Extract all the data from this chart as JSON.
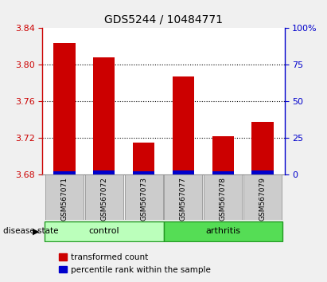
{
  "title": "GDS5244 / 10484771",
  "samples": [
    "GSM567071",
    "GSM567072",
    "GSM567073",
    "GSM567077",
    "GSM567078",
    "GSM567079"
  ],
  "transformed_counts": [
    3.824,
    3.808,
    3.715,
    3.787,
    3.722,
    3.738
  ],
  "percentile_ranks": [
    2.5,
    3.0,
    2.5,
    3.0,
    2.5,
    2.8
  ],
  "ylim_left": [
    3.68,
    3.84
  ],
  "ylim_right": [
    0,
    100
  ],
  "yticks_left": [
    3.68,
    3.72,
    3.76,
    3.8,
    3.84
  ],
  "yticks_right": [
    0,
    25,
    50,
    75,
    100
  ],
  "bar_bottom": 3.68,
  "red_color": "#cc0000",
  "blue_color": "#0000cc",
  "bar_width": 0.55,
  "control_color": "#bbffbb",
  "arthritis_color": "#55dd55",
  "group_label": "disease state",
  "title_fontsize": 10,
  "tick_label_fontsize": 8,
  "legend_label_red": "transformed count",
  "legend_label_blue": "percentile rank within the sample",
  "background_color": "#f0f0f0",
  "plot_bg": "#ffffff",
  "right_axis_color": "#0000cc",
  "left_axis_color": "#cc0000",
  "grid_yticks": [
    3.72,
    3.76,
    3.8
  ],
  "sample_box_color": "#cccccc",
  "sample_box_edge": "#888888"
}
